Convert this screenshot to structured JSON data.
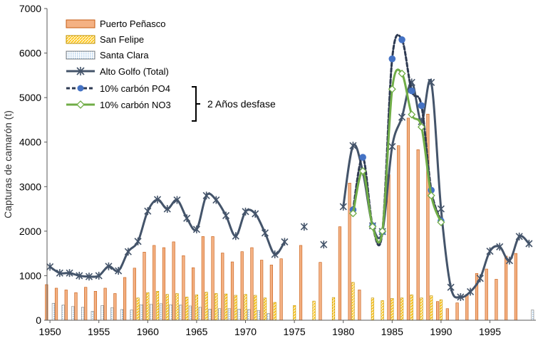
{
  "chart_data": {
    "type": "bar",
    "title": "",
    "xlabel": "",
    "ylabel": "Capturas de camarón (t)",
    "ylim": [
      0,
      7000
    ],
    "xlim": [
      1949.7,
      1999.7
    ],
    "yticks": [
      0,
      1000,
      2000,
      3000,
      4000,
      5000,
      6000,
      7000
    ],
    "xticks": [
      1950,
      1955,
      1960,
      1965,
      1970,
      1975,
      1980,
      1985,
      1990,
      1995
    ],
    "grid": false,
    "legend_position": "top-left",
    "bar_series": [
      {
        "name": "Puerto Peñasco",
        "color": "#f4b183",
        "pattern": "solid",
        "x": [
          1950,
          1951,
          1952,
          1953,
          1954,
          1955,
          1956,
          1957,
          1958,
          1959,
          1960,
          1961,
          1962,
          1963,
          1964,
          1965,
          1966,
          1967,
          1968,
          1969,
          1970,
          1971,
          1972,
          1973,
          1974,
          1975,
          1976,
          1977,
          1978,
          1979,
          1980,
          1981,
          1982,
          1983,
          1984,
          1985,
          1986,
          1987,
          1988,
          1989,
          1990,
          1991,
          1992,
          1993,
          1994,
          1995,
          1996,
          1997,
          1998,
          1999
        ],
        "values": [
          800,
          720,
          680,
          620,
          740,
          650,
          720,
          600,
          960,
          1170,
          1530,
          1680,
          1630,
          1760,
          1450,
          1180,
          1880,
          1880,
          1510,
          1310,
          1540,
          1630,
          1350,
          1240,
          1380,
          0,
          1680,
          0,
          1300,
          0,
          2100,
          3080,
          680,
          0,
          0,
          3270,
          3920,
          4540,
          3830,
          4630,
          420,
          260,
          390,
          580,
          1050,
          1150,
          920,
          1440,
          1500,
          0
        ]
      },
      {
        "name": "San Felipe",
        "color": "#ffc000",
        "pattern": "diagonal",
        "x": [
          1950,
          1951,
          1952,
          1953,
          1954,
          1955,
          1956,
          1957,
          1958,
          1959,
          1960,
          1961,
          1962,
          1963,
          1964,
          1965,
          1966,
          1967,
          1968,
          1969,
          1970,
          1971,
          1972,
          1973,
          1974,
          1975,
          1976,
          1977,
          1978,
          1979,
          1980,
          1981,
          1982,
          1983,
          1984,
          1985,
          1986,
          1987,
          1988,
          1989,
          1990,
          1991,
          1992,
          1993,
          1994,
          1995,
          1996,
          1997,
          1998,
          1999
        ],
        "values": [
          0,
          0,
          0,
          0,
          0,
          0,
          0,
          0,
          0,
          500,
          620,
          650,
          580,
          600,
          520,
          570,
          630,
          600,
          590,
          560,
          580,
          560,
          500,
          400,
          0,
          330,
          0,
          430,
          0,
          510,
          0,
          850,
          0,
          500,
          440,
          490,
          500,
          570,
          500,
          550,
          460,
          0,
          0,
          0,
          0,
          0,
          0,
          0,
          0,
          0
        ]
      },
      {
        "name": "Santa Clara",
        "color": "#9dc3e6",
        "pattern": "dots",
        "x": [
          1950,
          1951,
          1952,
          1953,
          1954,
          1955,
          1956,
          1957,
          1958,
          1959,
          1960,
          1961,
          1962,
          1963,
          1964,
          1965,
          1966,
          1967,
          1968,
          1969,
          1970,
          1971,
          1972,
          1973,
          1974,
          1975,
          1976,
          1977,
          1978,
          1979,
          1980,
          1981,
          1982,
          1983,
          1984,
          1985,
          1986,
          1987,
          1988,
          1989,
          1990,
          1991,
          1992,
          1993,
          1994,
          1995,
          1996,
          1997,
          1998,
          1999
        ],
        "values": [
          380,
          340,
          310,
          290,
          200,
          330,
          280,
          240,
          230,
          350,
          360,
          370,
          350,
          340,
          320,
          290,
          250,
          260,
          260,
          250,
          240,
          220,
          150,
          0,
          0,
          0,
          0,
          0,
          0,
          0,
          0,
          0,
          0,
          0,
          0,
          0,
          0,
          0,
          0,
          0,
          0,
          0,
          0,
          0,
          0,
          0,
          0,
          0,
          0,
          230
        ]
      }
    ],
    "line_series": [
      {
        "name": "Alto Golfo (Total)",
        "color": "#44546a",
        "style": "solid",
        "marker": "asterisk",
        "segments": [
          {
            "x": [
              1950,
              1951,
              1952,
              1953,
              1954,
              1955,
              1956,
              1957,
              1958,
              1959,
              1960,
              1961,
              1962,
              1963,
              1964,
              1965,
              1966,
              1967,
              1968,
              1969,
              1970,
              1971,
              1972,
              1973,
              1974
            ],
            "y": [
              1200,
              1060,
              1060,
              1000,
              980,
              1000,
              1210,
              1110,
              1540,
              1770,
              2450,
              2710,
              2500,
              2700,
              2290,
              2040,
              2800,
              2700,
              2350,
              1890,
              2440,
              2390,
              1960,
              1480,
              1760
            ]
          },
          {
            "x": [
              1976
            ],
            "y": [
              2100
            ]
          },
          {
            "x": [
              1978
            ],
            "y": [
              1700
            ]
          },
          {
            "x": [
              1980,
              1981,
              1982,
              1983,
              1984,
              1985,
              1986,
              1987,
              1988,
              1989,
              1990,
              1991,
              1992,
              1993,
              1994,
              1995,
              1996,
              1997,
              1998,
              1999
            ],
            "y": [
              2550,
              3920,
              3330,
              2120,
              1990,
              3900,
              4560,
              5340,
              4460,
              5340,
              2500,
              740,
              520,
              640,
              940,
              1550,
              1650,
              1340,
              1880,
              1720
            ]
          }
        ]
      },
      {
        "name": "10% carbón PO4",
        "color": "#2e3a52",
        "style": "dashed",
        "marker": "circle",
        "marker_color": "#4472c4",
        "segments": [
          {
            "x": [
              1981,
              1982,
              1983,
              1984,
              1985,
              1986,
              1987,
              1988,
              1989,
              1990
            ],
            "y": [
              2480,
              3660,
              2120,
              1990,
              5870,
              6300,
              5150,
              4820,
              2920,
              2230
            ]
          }
        ]
      },
      {
        "name": "10% carbón NO3",
        "color": "#70ad47",
        "style": "solid",
        "marker": "diamond",
        "segments": [
          {
            "x": [
              1981,
              1982,
              1983,
              1984,
              1985,
              1986,
              1987,
              1988,
              1989,
              1990
            ],
            "y": [
              2400,
              3350,
              2100,
              2000,
              5190,
              5540,
              4620,
              4340,
              2800,
              2200
            ]
          }
        ]
      }
    ],
    "annotation": "2 Años desfase"
  }
}
